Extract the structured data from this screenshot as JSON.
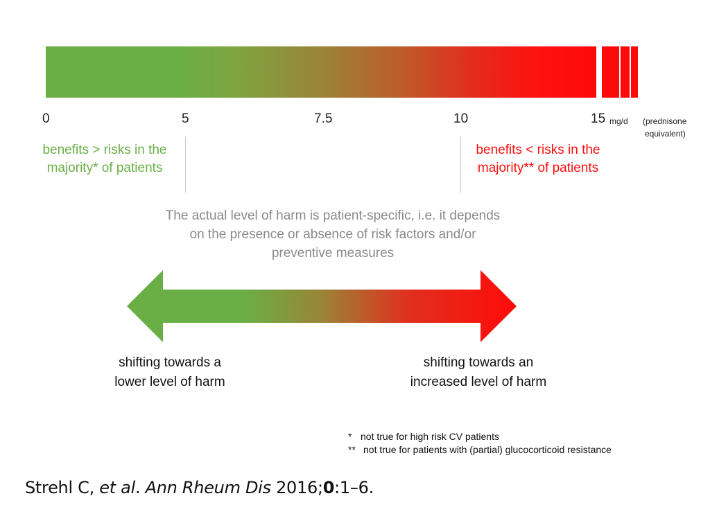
{
  "scale": {
    "ticks": [
      "0",
      "5",
      "7.5",
      "10",
      "15"
    ],
    "unit": "mg/d",
    "equivalent_line1": "(prednisone",
    "equivalent_line2": "equivalent)",
    "colors": {
      "benefit": "#6aaf45",
      "harm": "#ff0a0a"
    }
  },
  "benefit_label": {
    "line1": "benefits > risks in the",
    "line2": "majority* of patients"
  },
  "risk_label": {
    "line1": "benefits < risks in the",
    "line2": "majority** of patients"
  },
  "harm_note": {
    "line1": "The actual level of harm is patient-specific, i.e. it depends",
    "line2": "on the presence or absence of risk factors and/or",
    "line3": "preventive measures"
  },
  "arrow_left": {
    "line1": "shifting towards a",
    "line2": "lower level of harm"
  },
  "arrow_right": {
    "line1": "shifting towards an",
    "line2": "increased level of harm"
  },
  "footnotes": [
    {
      "mark": "*",
      "text": "not true for high risk CV patients"
    },
    {
      "mark": "**",
      "text": "not true for patients with (partial) glucocorticoid resistance"
    }
  ],
  "citation": {
    "authors": "Strehl C, ",
    "etal": "et al",
    "sep1": ". ",
    "journal": "Ann Rheum Dis",
    "year": " 2016;",
    "volume": "0",
    "pages": ":1–6."
  }
}
